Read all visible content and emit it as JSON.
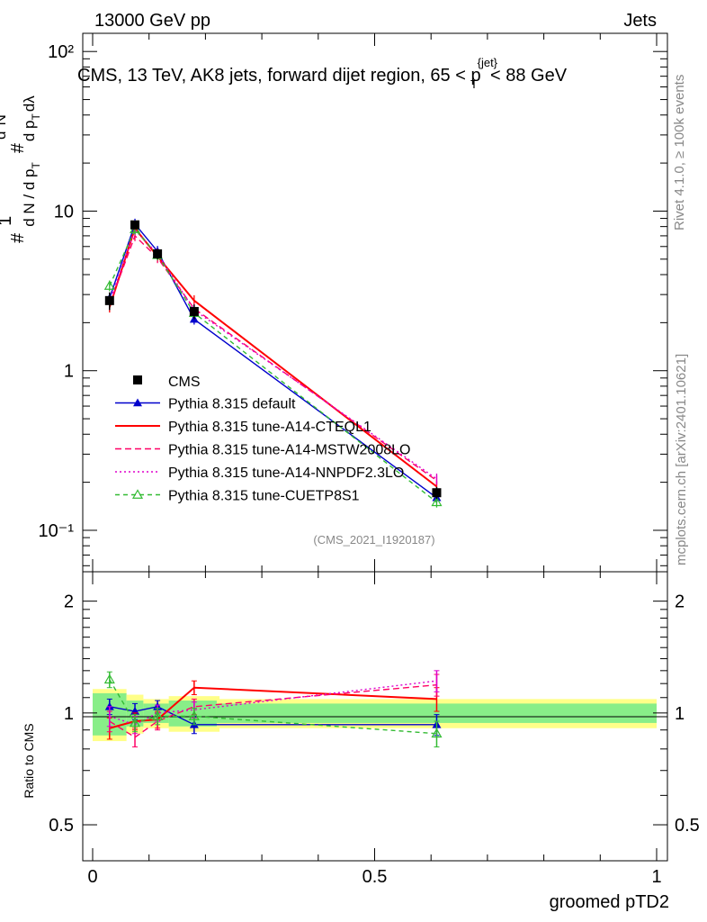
{
  "header": {
    "energy": "13000 GeV pp",
    "process": "Jets",
    "side_label_top": "Rivet 4.1.0, ≥ 100k events",
    "side_label_bottom": "mcplots.cern.ch [arXiv:2401.10621]",
    "analysis_id": "(CMS_2021_I1920187)"
  },
  "chart_data": {
    "type": "line",
    "title": "CMS, 13 TeV, AK8 jets, forward dijet region, 65 <p_T^{jet}< 88 GeV",
    "xlabel": "groomed pTD2",
    "ylabel": "1/N dN/dλ",
    "ratio_ylabel": "Ratio to CMS",
    "xlim": [
      0,
      1
    ],
    "ylim": [
      0.055,
      130
    ],
    "ratio_ylim": [
      0.4,
      2.4
    ],
    "yscale": "log",
    "x_ticks": [
      "0",
      "0.5",
      "1"
    ],
    "y_ticks": [
      "10⁻¹",
      "1",
      "10",
      "10²"
    ],
    "ratio_ticks": [
      "0.5",
      "1",
      "2"
    ],
    "legend_position": "middle-left",
    "data": {
      "name": "CMS",
      "x": [
        0.03,
        0.075,
        0.115,
        0.18,
        0.61
      ],
      "xerr": [
        0.03,
        0.015,
        0.025,
        0.045,
        0.39
      ],
      "y": [
        2.75,
        8.2,
        5.4,
        2.35,
        0.172
      ],
      "yerr": [
        0.35,
        0.5,
        0.4,
        0.25,
        0.015
      ],
      "band_inner": [
        0.13,
        0.08,
        0.06,
        0.08,
        0.06
      ],
      "band_outer": [
        0.16,
        0.12,
        0.09,
        0.11,
        0.09
      ]
    },
    "series": [
      {
        "name": "Pythia 8.315 default",
        "color": "#0000cc",
        "dash": "",
        "marker": "triangle-filled",
        "x": [
          0.03,
          0.075,
          0.115,
          0.18,
          0.61
        ],
        "y": [
          2.85,
          8.3,
          5.6,
          2.1,
          0.16
        ],
        "ratio": [
          1.04,
          1.01,
          1.04,
          0.93,
          0.93
        ],
        "ratio_err": [
          0.05,
          0.05,
          0.04,
          0.05,
          0.06
        ]
      },
      {
        "name": "Pythia 8.315 tune-A14-CTEQL1",
        "color": "#ff0000",
        "dash": "",
        "marker": "none",
        "x": [
          0.03,
          0.075,
          0.115,
          0.18,
          0.61
        ],
        "y": [
          2.5,
          7.8,
          5.2,
          2.75,
          0.188
        ],
        "ratio": [
          0.91,
          0.95,
          0.96,
          1.17,
          1.09
        ],
        "ratio_err": [
          0.06,
          0.05,
          0.05,
          0.05,
          0.08
        ]
      },
      {
        "name": "Pythia 8.315 tune-A14-MSTW2008LO",
        "color": "#ff0066",
        "dash": "7,4",
        "marker": "none",
        "x": [
          0.03,
          0.075,
          0.115,
          0.18,
          0.61
        ],
        "y": [
          2.6,
          7.0,
          5.1,
          2.45,
          0.205
        ],
        "ratio": [
          0.95,
          0.86,
          0.95,
          1.04,
          1.19
        ],
        "ratio_err": [
          0.06,
          0.05,
          0.05,
          0.05,
          0.08
        ]
      },
      {
        "name": "Pythia 8.315 tune-A14-NNPDF2.3LO",
        "color": "#dd00cc",
        "dash": "2,3",
        "marker": "none",
        "x": [
          0.03,
          0.075,
          0.115,
          0.18,
          0.61
        ],
        "y": [
          2.7,
          7.6,
          5.4,
          2.4,
          0.21
        ],
        "ratio": [
          0.98,
          0.93,
          1.0,
          1.02,
          1.22
        ],
        "ratio_err": [
          0.06,
          0.05,
          0.05,
          0.05,
          0.08
        ]
      },
      {
        "name": "Pythia 8.315 tune-CUETP8S1",
        "color": "#33bb33",
        "dash": "5,4",
        "marker": "triangle-open",
        "x": [
          0.03,
          0.075,
          0.115,
          0.18,
          0.61
        ],
        "y": [
          3.4,
          7.7,
          5.3,
          2.3,
          0.15
        ],
        "ratio": [
          1.23,
          0.94,
          0.98,
          0.98,
          0.88
        ],
        "ratio_err": [
          0.06,
          0.05,
          0.05,
          0.05,
          0.07
        ]
      }
    ]
  }
}
